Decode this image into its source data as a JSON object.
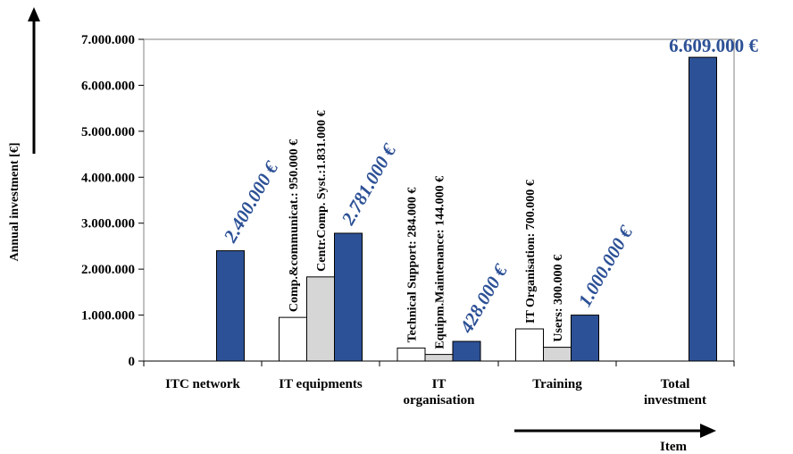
{
  "chart_data": {
    "type": "bar",
    "ylabel": "Annual investment [€]",
    "xlabel": "Item",
    "ylim": [
      0,
      7000000
    ],
    "yticks": [
      "0",
      "1.000.000",
      "2.000.000",
      "3.000.000",
      "4.000.000",
      "5.000.000",
      "6.000.000",
      "7.000.000"
    ],
    "ytick_values": [
      0,
      1000000,
      2000000,
      3000000,
      4000000,
      5000000,
      6000000,
      7000000
    ],
    "categories": [
      {
        "lines": [
          "ITC network"
        ]
      },
      {
        "lines": [
          "IT equipments"
        ]
      },
      {
        "lines": [
          "IT",
          "organisation"
        ]
      },
      {
        "lines": [
          "Training"
        ]
      },
      {
        "lines": [
          "Total",
          "investment"
        ]
      }
    ],
    "groups": [
      {
        "components": [],
        "total": {
          "value": 2400000,
          "label": "2.400.000 €"
        }
      },
      {
        "components": [
          {
            "value": 950000,
            "label": "Comp.&communicat.: 950.000 €",
            "style": "white"
          },
          {
            "value": 1831000,
            "label": "Centr.Comp. Syst.:1.831.000 €",
            "style": "grey"
          }
        ],
        "total": {
          "value": 2781000,
          "label": "2.781.000 €"
        }
      },
      {
        "components": [
          {
            "value": 284000,
            "label": "Technical Support: 284.000 €",
            "style": "white"
          },
          {
            "value": 144000,
            "label": "Equipm.Maintenance: 144.000 €",
            "style": "grey"
          }
        ],
        "total": {
          "value": 428000,
          "label": "428.000 €"
        }
      },
      {
        "components": [
          {
            "value": 700000,
            "label": "IT Organisation: 700.000 €",
            "style": "white"
          },
          {
            "value": 300000,
            "label": "Users: 300.000 €",
            "style": "grey"
          }
        ],
        "total": {
          "value": 1000000,
          "label": "1.000.000 €"
        }
      },
      {
        "components": [],
        "total": {
          "value": 6609000,
          "label": "6.609.000 €"
        }
      }
    ],
    "colors": {
      "total": "#2d5196",
      "grey": "#d6d6d6",
      "white": "#ffffff",
      "total_label": "#2d5196"
    },
    "grid": false,
    "legend": "none"
  }
}
